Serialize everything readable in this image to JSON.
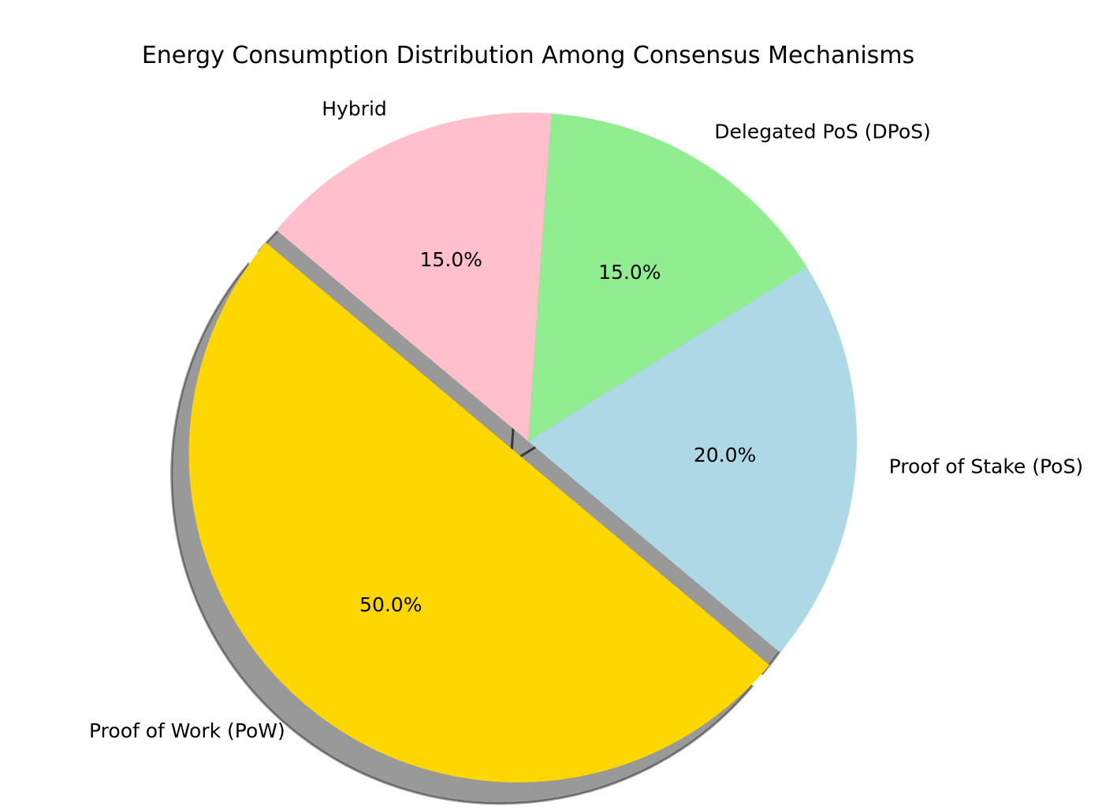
{
  "chart_data": {
    "type": "pie",
    "title": "Energy Consumption Distribution Among Consensus Mechanisms",
    "start_angle_deg": 140,
    "direction": "counterclockwise",
    "shadow": true,
    "slices": [
      {
        "label": "Proof of Work (PoW)",
        "value": 50,
        "pct_label": "50.0%",
        "color": "#FFD700",
        "explode": 0.05
      },
      {
        "label": "Proof of Stake (PoS)",
        "value": 20,
        "pct_label": "20.0%",
        "color": "#ADD8E6",
        "explode": 0
      },
      {
        "label": "Delegated PoS (DPoS)",
        "value": 15,
        "pct_label": "15.0%",
        "color": "#90EE90",
        "explode": 0
      },
      {
        "label": "Hybrid",
        "value": 15,
        "pct_label": "15.0%",
        "color": "#FFC0CB",
        "explode": 0
      }
    ]
  }
}
